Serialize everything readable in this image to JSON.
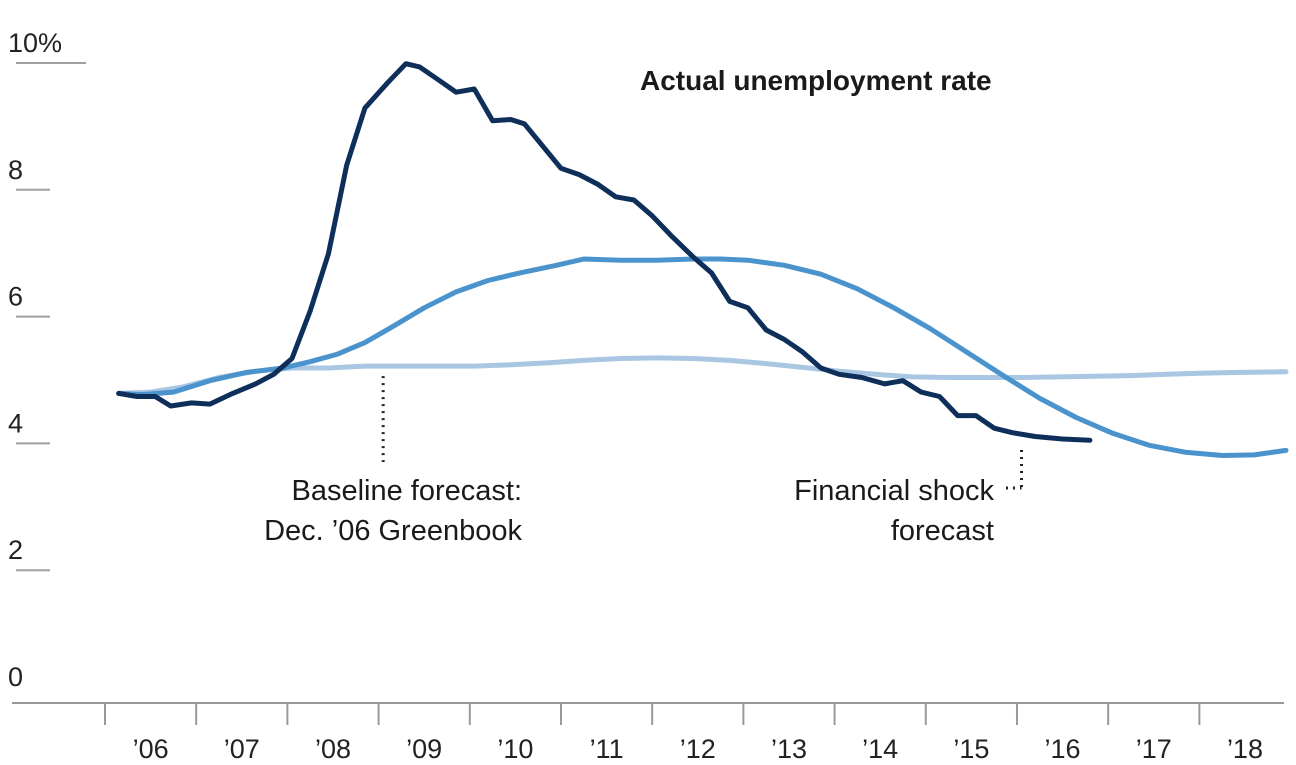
{
  "chart_data": {
    "type": "line",
    "title": "",
    "xlabel": "",
    "ylabel": "",
    "ylim": [
      0,
      10
    ],
    "xlim": [
      2006.0,
      2018.95
    ],
    "y_ticks": [
      {
        "value": 0,
        "label": "0"
      },
      {
        "value": 2,
        "label": "2"
      },
      {
        "value": 4,
        "label": "4"
      },
      {
        "value": 6,
        "label": "6"
      },
      {
        "value": 8,
        "label": "8"
      },
      {
        "value": 10,
        "label": "10%"
      }
    ],
    "x_ticks": [
      {
        "value": 2006,
        "label": "’06"
      },
      {
        "value": 2007,
        "label": "’07"
      },
      {
        "value": 2008,
        "label": "’08"
      },
      {
        "value": 2009,
        "label": "’09"
      },
      {
        "value": 2010,
        "label": "’10"
      },
      {
        "value": 2011,
        "label": "’11"
      },
      {
        "value": 2012,
        "label": "’12"
      },
      {
        "value": 2013,
        "label": "’13"
      },
      {
        "value": 2014,
        "label": "’14"
      },
      {
        "value": 2015,
        "label": "’15"
      },
      {
        "value": 2016,
        "label": "’16"
      },
      {
        "value": 2017,
        "label": "’17"
      },
      {
        "value": 2018,
        "label": "’18"
      }
    ],
    "grid": false,
    "series": [
      {
        "name": "Actual unemployment rate",
        "color": "#0e2f5a",
        "points": [
          [
            2006.15,
            4.6
          ],
          [
            2006.35,
            4.55
          ],
          [
            2006.55,
            4.55
          ],
          [
            2006.72,
            4.4
          ],
          [
            2006.95,
            4.45
          ],
          [
            2007.15,
            4.43
          ],
          [
            2007.4,
            4.6
          ],
          [
            2007.65,
            4.75
          ],
          [
            2007.85,
            4.9
          ],
          [
            2008.05,
            5.15
          ],
          [
            2008.25,
            5.9
          ],
          [
            2008.45,
            6.8
          ],
          [
            2008.65,
            8.2
          ],
          [
            2008.85,
            9.1
          ],
          [
            2009.1,
            9.5
          ],
          [
            2009.3,
            9.8
          ],
          [
            2009.45,
            9.75
          ],
          [
            2009.65,
            9.55
          ],
          [
            2009.85,
            9.35
          ],
          [
            2010.05,
            9.4
          ],
          [
            2010.25,
            8.9
          ],
          [
            2010.45,
            8.92
          ],
          [
            2010.6,
            8.85
          ],
          [
            2010.8,
            8.5
          ],
          [
            2011.0,
            8.15
          ],
          [
            2011.2,
            8.05
          ],
          [
            2011.4,
            7.9
          ],
          [
            2011.6,
            7.7
          ],
          [
            2011.8,
            7.65
          ],
          [
            2012.0,
            7.4
          ],
          [
            2012.2,
            7.1
          ],
          [
            2012.45,
            6.75
          ],
          [
            2012.65,
            6.5
          ],
          [
            2012.85,
            6.05
          ],
          [
            2013.05,
            5.95
          ],
          [
            2013.25,
            5.6
          ],
          [
            2013.45,
            5.45
          ],
          [
            2013.65,
            5.25
          ],
          [
            2013.85,
            5.0
          ],
          [
            2014.05,
            4.9
          ],
          [
            2014.3,
            4.85
          ],
          [
            2014.55,
            4.75
          ],
          [
            2014.75,
            4.8
          ],
          [
            2014.95,
            4.62
          ],
          [
            2015.15,
            4.55
          ],
          [
            2015.35,
            4.25
          ],
          [
            2015.55,
            4.25
          ],
          [
            2015.75,
            4.05
          ],
          [
            2015.95,
            3.98
          ],
          [
            2016.2,
            3.92
          ],
          [
            2016.5,
            3.88
          ],
          [
            2016.8,
            3.86
          ]
        ]
      },
      {
        "name": "Financial shock forecast",
        "color": "#4a93cc",
        "points": [
          [
            2006.15,
            4.6
          ],
          [
            2006.4,
            4.58
          ],
          [
            2006.75,
            4.62
          ],
          [
            2007.15,
            4.8
          ],
          [
            2007.55,
            4.93
          ],
          [
            2007.95,
            5.0
          ],
          [
            2008.25,
            5.1
          ],
          [
            2008.55,
            5.22
          ],
          [
            2008.85,
            5.4
          ],
          [
            2009.15,
            5.65
          ],
          [
            2009.5,
            5.95
          ],
          [
            2009.85,
            6.2
          ],
          [
            2010.2,
            6.38
          ],
          [
            2010.55,
            6.5
          ],
          [
            2010.95,
            6.62
          ],
          [
            2011.25,
            6.72
          ],
          [
            2011.65,
            6.7
          ],
          [
            2012.05,
            6.7
          ],
          [
            2012.45,
            6.72
          ],
          [
            2012.75,
            6.72
          ],
          [
            2013.05,
            6.7
          ],
          [
            2013.45,
            6.62
          ],
          [
            2013.85,
            6.48
          ],
          [
            2014.25,
            6.25
          ],
          [
            2014.65,
            5.95
          ],
          [
            2015.05,
            5.62
          ],
          [
            2015.45,
            5.25
          ],
          [
            2015.85,
            4.88
          ],
          [
            2016.25,
            4.52
          ],
          [
            2016.65,
            4.22
          ],
          [
            2017.05,
            3.97
          ],
          [
            2017.45,
            3.78
          ],
          [
            2017.85,
            3.67
          ],
          [
            2018.25,
            3.62
          ],
          [
            2018.6,
            3.63
          ],
          [
            2018.95,
            3.7
          ]
        ]
      },
      {
        "name": "Baseline forecast: Dec. ’06 Greenbook",
        "color": "#a9c6e3",
        "points": [
          [
            2006.15,
            4.6
          ],
          [
            2006.5,
            4.62
          ],
          [
            2006.85,
            4.7
          ],
          [
            2007.25,
            4.85
          ],
          [
            2007.65,
            4.95
          ],
          [
            2008.05,
            5.0
          ],
          [
            2008.45,
            5.0
          ],
          [
            2008.85,
            5.03
          ],
          [
            2009.25,
            5.03
          ],
          [
            2009.65,
            5.03
          ],
          [
            2010.05,
            5.03
          ],
          [
            2010.45,
            5.05
          ],
          [
            2010.85,
            5.08
          ],
          [
            2011.25,
            5.12
          ],
          [
            2011.65,
            5.15
          ],
          [
            2012.05,
            5.16
          ],
          [
            2012.45,
            5.15
          ],
          [
            2012.85,
            5.12
          ],
          [
            2013.25,
            5.07
          ],
          [
            2013.65,
            5.01
          ],
          [
            2014.05,
            4.95
          ],
          [
            2014.45,
            4.9
          ],
          [
            2014.85,
            4.86
          ],
          [
            2015.25,
            4.85
          ],
          [
            2015.65,
            4.85
          ],
          [
            2016.05,
            4.85
          ],
          [
            2016.45,
            4.86
          ],
          [
            2016.85,
            4.87
          ],
          [
            2017.25,
            4.88
          ],
          [
            2017.65,
            4.9
          ],
          [
            2018.05,
            4.92
          ],
          [
            2018.45,
            4.93
          ],
          [
            2018.95,
            4.94
          ]
        ]
      }
    ],
    "annotations": {
      "actual_label": "Actual unemployment rate",
      "baseline_label": [
        "Baseline forecast:",
        "Dec. ’06 Greenbook"
      ],
      "shock_label": [
        "Financial shock",
        "forecast"
      ],
      "baseline_point": [
        2009.05,
        5.03
      ],
      "shock_point": [
        2016.05,
        4.2
      ]
    }
  }
}
